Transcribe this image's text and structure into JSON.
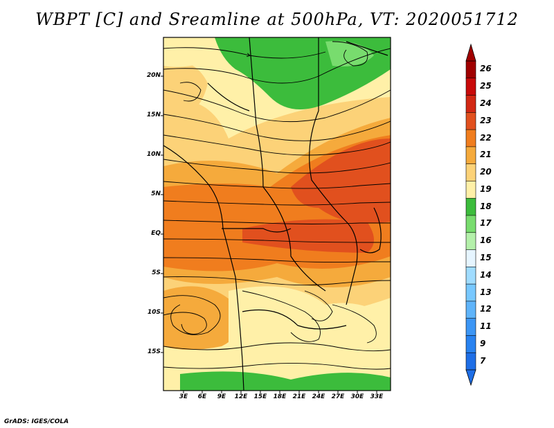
{
  "title": "WBPT [C] and Sreamline at 500hPa, VT: 2020051712",
  "credit": "GrADS: IGES/COLA",
  "lat_labels": [
    "20N",
    "15N",
    "10N",
    "5N",
    "EQ",
    "5S",
    "10S",
    "15S"
  ],
  "lon_labels": [
    "3E",
    "6E",
    "9E",
    "12E",
    "15E",
    "18E",
    "21E",
    "24E",
    "27E",
    "30E",
    "33E"
  ],
  "colorbar": {
    "labels": [
      "7",
      "9",
      "11",
      "12",
      "13",
      "14",
      "15",
      "16",
      "17",
      "18",
      "19",
      "20",
      "21",
      "22",
      "23",
      "24",
      "25",
      "26"
    ],
    "colors": [
      "#1e6ee6",
      "#2882f0",
      "#3c96f5",
      "#5fb4fa",
      "#78c8ff",
      "#a0dcff",
      "#e6f5ff",
      "#b4f0aa",
      "#78dc6e",
      "#3cbc3c",
      "#fff0a8",
      "#fcd278",
      "#f5aa3c",
      "#f07d1e",
      "#e1501e",
      "#d22814",
      "#c80a0a",
      "#a00000"
    ]
  },
  "legend_colors": {
    "green": "#3cbc3c",
    "light_green": "#78dc6e",
    "yellow": "#fff0a8",
    "lt_orange": "#fcd278",
    "orange": "#f5aa3c",
    "dk_orange": "#f07d1e",
    "red_orange": "#e1501e"
  }
}
